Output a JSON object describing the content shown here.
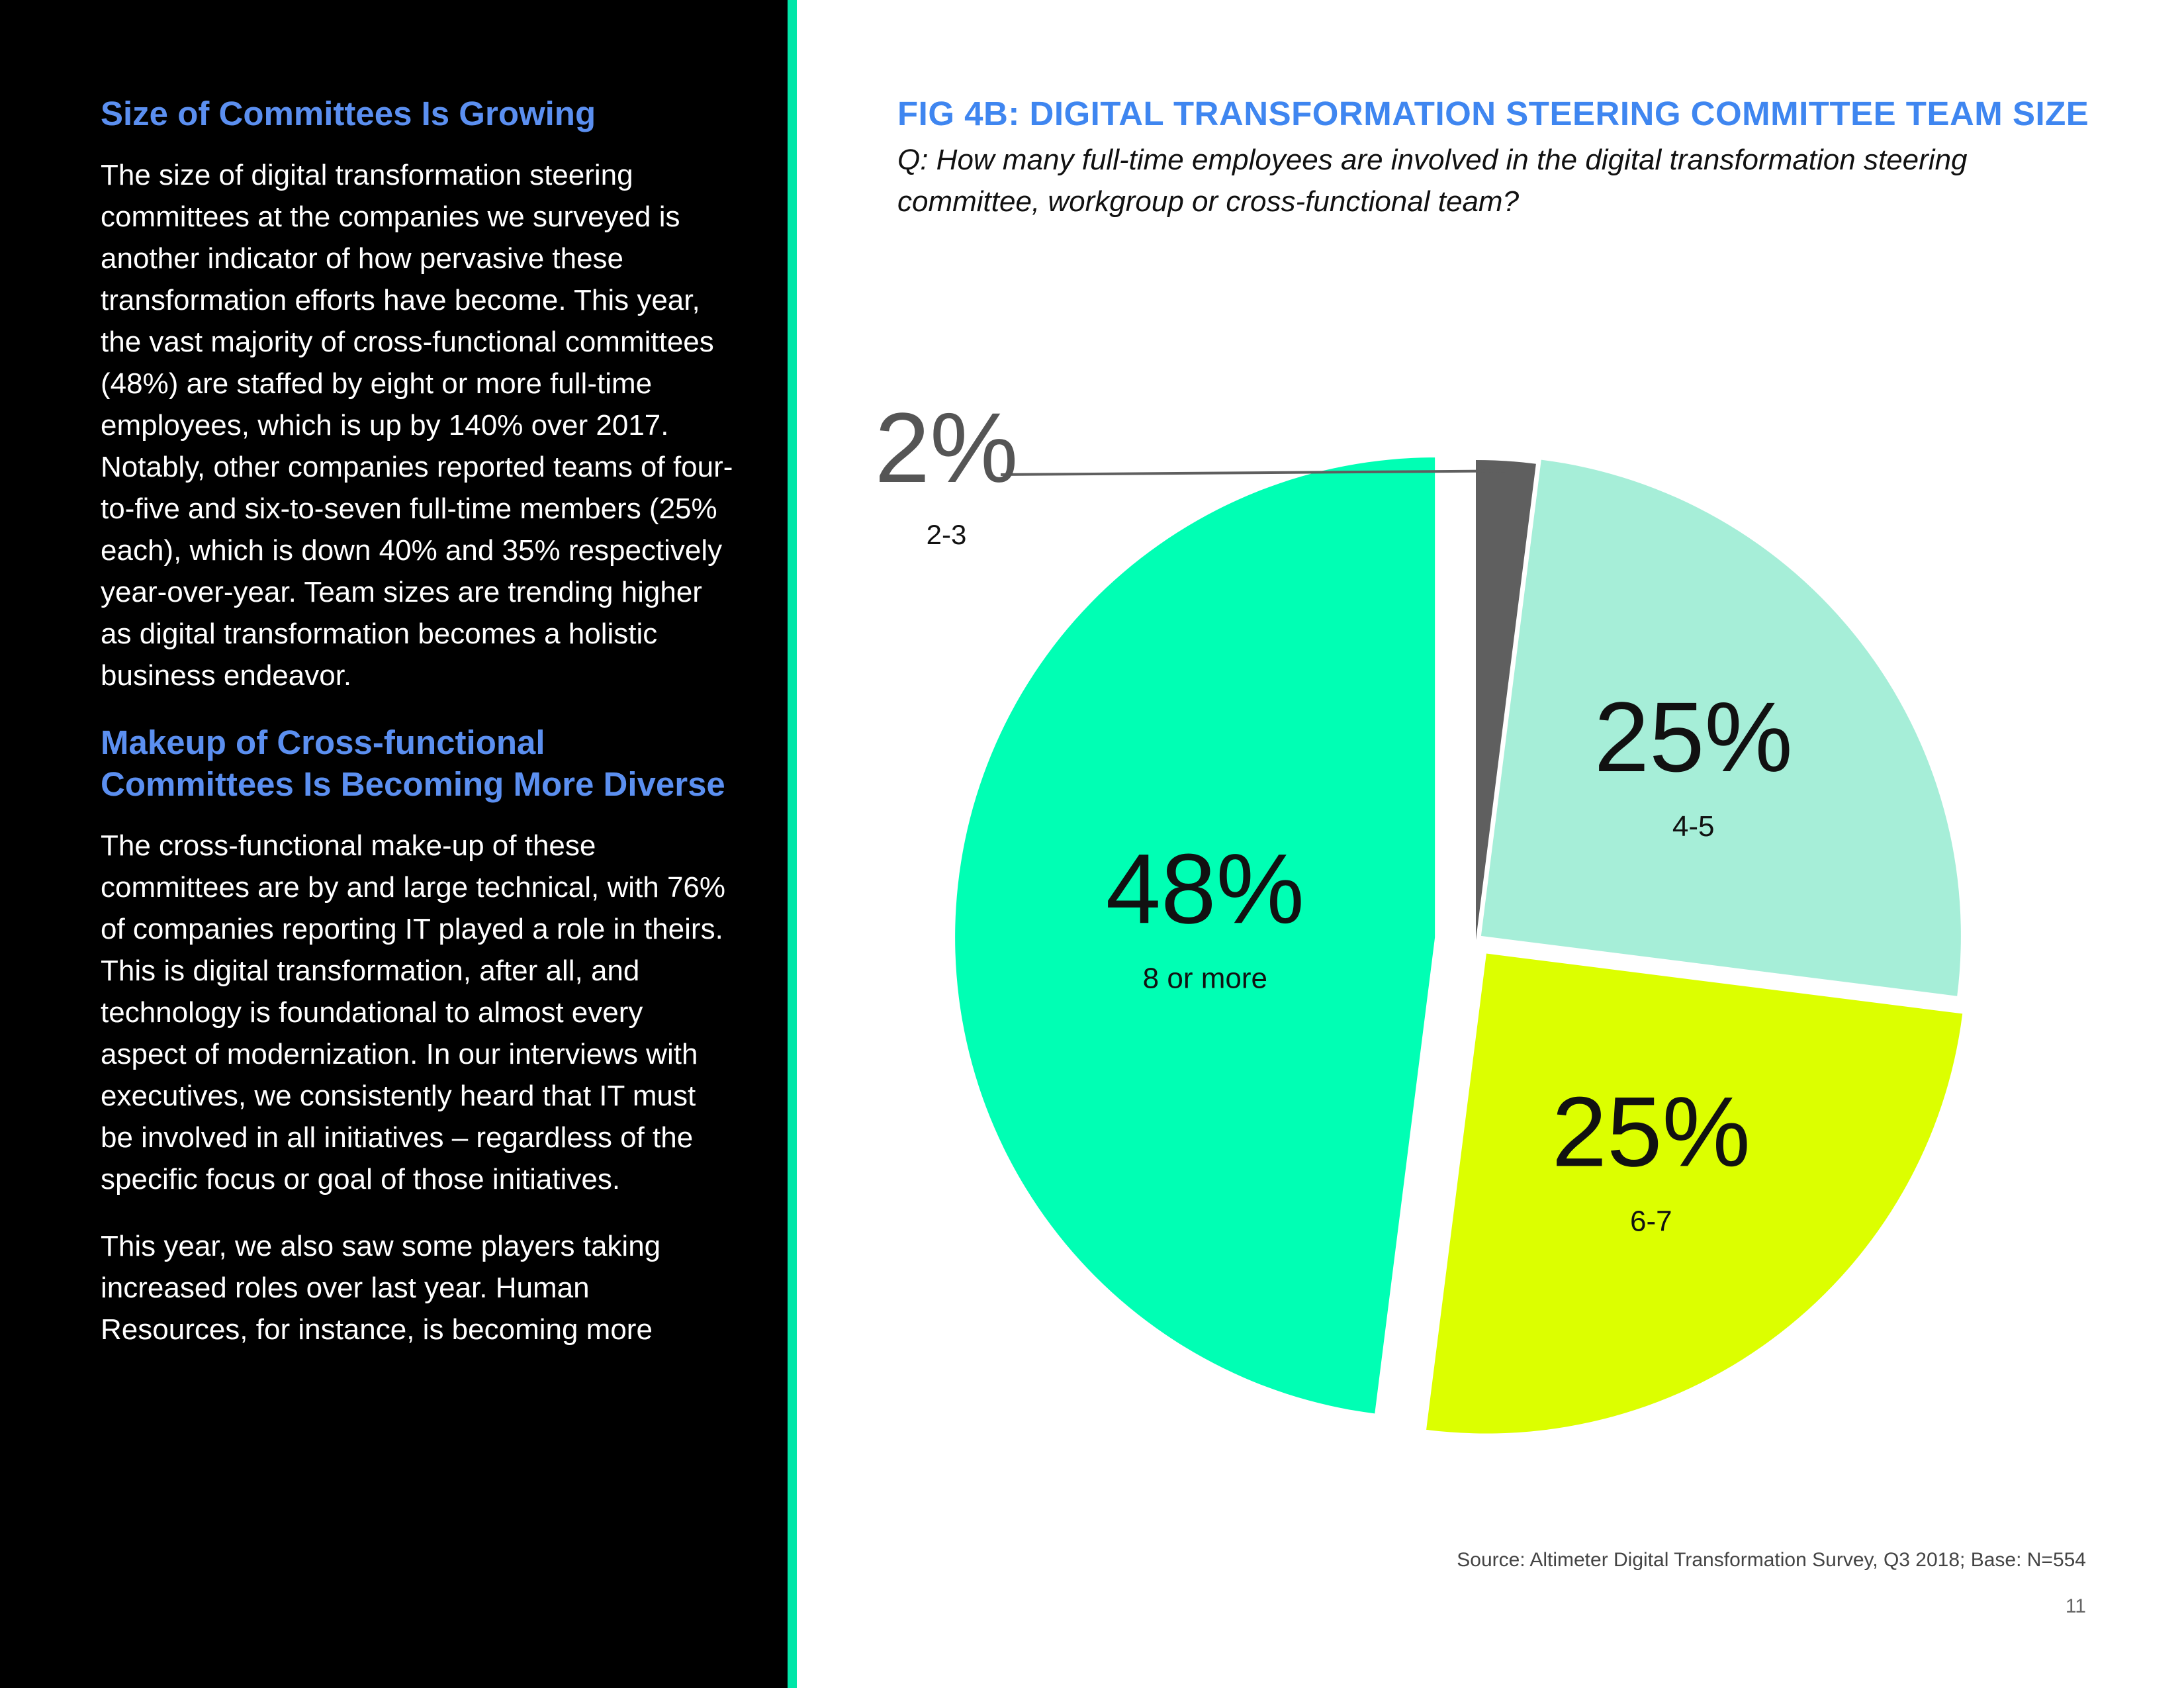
{
  "left_column": {
    "heading1": "Size of Committees Is Growing",
    "para1": "The size of digital transformation steering committees at the companies we surveyed is another indicator of how pervasive these transformation efforts have become. This year, the vast majority of cross-functional committees (48%) are staffed by eight or more full-time employees, which is up by 140% over 2017. Notably, other companies reported teams of four-to-five and six-to-seven full-time members (25% each), which is down 40% and 35% respectively year-over-year. Team sizes are trending higher as digital transformation becomes a holistic business endeavor.",
    "heading2": "Makeup of Cross-functional Committees Is Becoming More Diverse",
    "para2": "The cross-functional make-up of these committees are by and large technical, with 76% of companies reporting IT played a role in theirs. This is digital transformation, after all, and technology is foundational to almost every aspect of modernization. In our interviews with executives, we consistently heard that IT must be involved in all initiatives – regardless of the specific focus or goal of those initiatives.",
    "para3": "This year, we also saw some players taking increased roles over last year. Human Resources, for instance, is becoming more"
  },
  "figure": {
    "title": "FIG 4B: DIGITAL TRANSFORMATION STEERING COMMITTEE TEAM SIZE",
    "question": "Q: How many full-time employees are involved in the digital transformation steering committee, workgroup or cross-functional team?"
  },
  "chart_data": {
    "type": "pie",
    "slices": [
      {
        "label": "2-3",
        "value": 2,
        "value_label": "2%",
        "color": "#5f5f5f"
      },
      {
        "label": "4-5",
        "value": 25,
        "value_label": "25%",
        "color": "#a6eed8"
      },
      {
        "label": "6-7",
        "value": 25,
        "value_label": "25%",
        "color": "#dcff00"
      },
      {
        "label": "8 or more",
        "value": 48,
        "value_label": "48%",
        "color": "#00ffb4"
      }
    ],
    "start_angle": "12 o'clock",
    "direction": "clockwise",
    "exploded": true,
    "legend": "none"
  },
  "footer": {
    "source": "Source: Altimeter Digital Transformation Survey, Q3 2018; Base: N=554",
    "page_number": "11"
  }
}
